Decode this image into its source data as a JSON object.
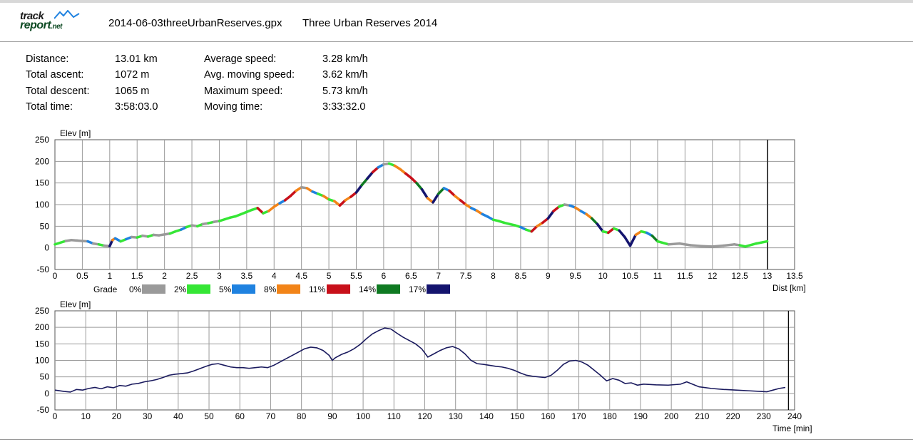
{
  "header": {
    "logo_top": "track",
    "logo_main": "report",
    "logo_suffix": ".net",
    "filename": "2014-06-03threeUrbanReserves.gpx",
    "track_name": "Three Urban Reserves 2014"
  },
  "stats_left": [
    {
      "label": "Distance:",
      "value": "13.01 km"
    },
    {
      "label": "Total ascent:",
      "value": "1072 m"
    },
    {
      "label": "Total descent:",
      "value": "1065 m"
    },
    {
      "label": "Total time:",
      "value": "3:58:03.0"
    }
  ],
  "stats_right": [
    {
      "label": "Average speed:",
      "value": "3.28 km/h"
    },
    {
      "label": "Avg. moving speed:",
      "value": "3.62 km/h"
    },
    {
      "label": "Maximum speed:",
      "value": "5.73 km/h"
    },
    {
      "label": "Moving time:",
      "value": "3:33:32.0"
    }
  ],
  "colors": {
    "line": "#1a1a5e",
    "grid": "#9a9a9a",
    "marker": "#000000"
  },
  "chart_data": [
    {
      "type": "line",
      "ylabel": "Elev [m]",
      "xlabel": "Dist [km]",
      "xlim": [
        0,
        13.5
      ],
      "ylim": [
        -50,
        250
      ],
      "x_ticks": [
        "0",
        "0.5",
        "1",
        "1.5",
        "2",
        "2.5",
        "3",
        "3.5",
        "4",
        "4.5",
        "5",
        "5.5",
        "6",
        "6.5",
        "7",
        "7.5",
        "8",
        "8.5",
        "9",
        "9.5",
        "10",
        "10.5",
        "11",
        "11.5",
        "12",
        "12.5",
        "13",
        "13.5"
      ],
      "y_ticks": [
        "250",
        "200",
        "150",
        "100",
        "50",
        "0",
        "-50"
      ],
      "grid": true,
      "end_marker_x": 13.01,
      "legend": {
        "title": "Grade",
        "entries": [
          {
            "label": "0%",
            "color": "#9a9a9a"
          },
          {
            "label": "2%",
            "color": "#35e635"
          },
          {
            "label": "5%",
            "color": "#1f82e0"
          },
          {
            "label": "8%",
            "color": "#f28418"
          },
          {
            "label": "11%",
            "color": "#c8101a"
          },
          {
            "label": "14%",
            "color": "#0f7a22"
          },
          {
            "label": "17%",
            "color": "#14146e"
          }
        ]
      },
      "x": [
        0,
        0.1,
        0.2,
        0.3,
        0.4,
        0.5,
        0.6,
        0.7,
        0.8,
        0.9,
        1.0,
        1.05,
        1.1,
        1.2,
        1.3,
        1.4,
        1.5,
        1.6,
        1.7,
        1.8,
        1.9,
        2.0,
        2.1,
        2.2,
        2.3,
        2.4,
        2.5,
        2.6,
        2.7,
        2.8,
        2.9,
        3.0,
        3.1,
        3.2,
        3.3,
        3.4,
        3.5,
        3.6,
        3.7,
        3.8,
        3.9,
        4.0,
        4.1,
        4.2,
        4.3,
        4.4,
        4.5,
        4.6,
        4.7,
        4.8,
        4.9,
        5.0,
        5.1,
        5.2,
        5.3,
        5.4,
        5.5,
        5.6,
        5.7,
        5.8,
        5.9,
        6.0,
        6.1,
        6.2,
        6.3,
        6.4,
        6.5,
        6.6,
        6.7,
        6.8,
        6.9,
        7.0,
        7.1,
        7.2,
        7.3,
        7.4,
        7.5,
        7.6,
        7.7,
        7.8,
        7.9,
        8.0,
        8.1,
        8.2,
        8.3,
        8.4,
        8.5,
        8.6,
        8.7,
        8.8,
        8.9,
        9.0,
        9.1,
        9.2,
        9.3,
        9.4,
        9.5,
        9.6,
        9.7,
        9.8,
        9.9,
        10.0,
        10.1,
        10.2,
        10.3,
        10.4,
        10.5,
        10.6,
        10.7,
        10.8,
        10.9,
        11.0,
        11.2,
        11.4,
        11.6,
        11.8,
        12.0,
        12.2,
        12.4,
        12.5,
        12.6,
        12.8,
        13.0
      ],
      "y": [
        8,
        12,
        16,
        18,
        17,
        16,
        15,
        10,
        8,
        5,
        4,
        18,
        22,
        15,
        20,
        25,
        24,
        28,
        26,
        30,
        29,
        31,
        33,
        38,
        42,
        48,
        52,
        50,
        55,
        57,
        60,
        62,
        66,
        70,
        73,
        78,
        83,
        88,
        92,
        80,
        85,
        95,
        103,
        110,
        120,
        132,
        140,
        138,
        130,
        125,
        120,
        112,
        108,
        98,
        110,
        118,
        128,
        145,
        160,
        175,
        186,
        193,
        195,
        190,
        182,
        172,
        162,
        150,
        135,
        115,
        105,
        125,
        138,
        132,
        120,
        110,
        100,
        92,
        86,
        78,
        72,
        65,
        62,
        58,
        55,
        52,
        48,
        42,
        38,
        50,
        58,
        68,
        85,
        95,
        100,
        98,
        93,
        85,
        78,
        68,
        55,
        38,
        35,
        45,
        40,
        25,
        5,
        30,
        38,
        35,
        28,
        15,
        8,
        10,
        6,
        4,
        3,
        5,
        8,
        6,
        3,
        10,
        15
      ]
    },
    {
      "type": "line",
      "ylabel": "Elev [m]",
      "xlabel": "Time [min]",
      "xlim": [
        0,
        240
      ],
      "ylim": [
        -50,
        250
      ],
      "x_ticks": [
        "0",
        "10",
        "20",
        "30",
        "40",
        "50",
        "60",
        "70",
        "80",
        "90",
        "100",
        "110",
        "120",
        "130",
        "140",
        "150",
        "160",
        "170",
        "180",
        "190",
        "200",
        "210",
        "220",
        "230",
        "240"
      ],
      "y_ticks": [
        "250",
        "200",
        "150",
        "100",
        "50",
        "0",
        "-50"
      ],
      "grid": true,
      "end_marker_x": 238,
      "x": [
        0,
        3,
        5,
        7,
        9,
        11,
        13,
        15,
        17,
        19,
        21,
        23,
        25,
        27,
        29,
        31,
        33,
        35,
        37,
        39,
        41,
        43,
        45,
        47,
        49,
        51,
        53,
        55,
        57,
        59,
        61,
        63,
        65,
        67,
        69,
        71,
        73,
        75,
        77,
        79,
        81,
        83,
        85,
        87,
        89,
        90,
        91,
        93,
        95,
        97,
        99,
        101,
        103,
        105,
        107,
        109,
        111,
        113,
        115,
        117,
        119,
        121,
        123,
        125,
        127,
        129,
        131,
        133,
        135,
        137,
        139,
        141,
        143,
        145,
        147,
        149,
        151,
        153,
        155,
        157,
        159,
        161,
        163,
        165,
        167,
        169,
        171,
        173,
        175,
        177,
        179,
        181,
        183,
        185,
        187,
        189,
        191,
        195,
        199,
        203,
        205,
        209,
        213,
        217,
        221,
        225,
        229,
        231,
        233,
        235,
        237
      ],
      "y": [
        10,
        6,
        4,
        12,
        10,
        15,
        18,
        14,
        20,
        17,
        24,
        22,
        28,
        30,
        35,
        38,
        42,
        48,
        55,
        58,
        60,
        62,
        68,
        75,
        82,
        88,
        90,
        85,
        80,
        78,
        78,
        76,
        78,
        80,
        78,
        85,
        95,
        105,
        115,
        125,
        135,
        140,
        138,
        130,
        115,
        100,
        108,
        118,
        125,
        135,
        148,
        165,
        180,
        190,
        198,
        195,
        182,
        170,
        160,
        150,
        135,
        110,
        120,
        130,
        138,
        142,
        135,
        120,
        100,
        90,
        88,
        85,
        82,
        80,
        76,
        70,
        62,
        55,
        52,
        50,
        48,
        55,
        70,
        88,
        98,
        100,
        95,
        85,
        70,
        55,
        38,
        45,
        40,
        30,
        32,
        25,
        28,
        26,
        25,
        28,
        35,
        20,
        15,
        12,
        10,
        8,
        6,
        5,
        10,
        15,
        18
      ]
    }
  ]
}
